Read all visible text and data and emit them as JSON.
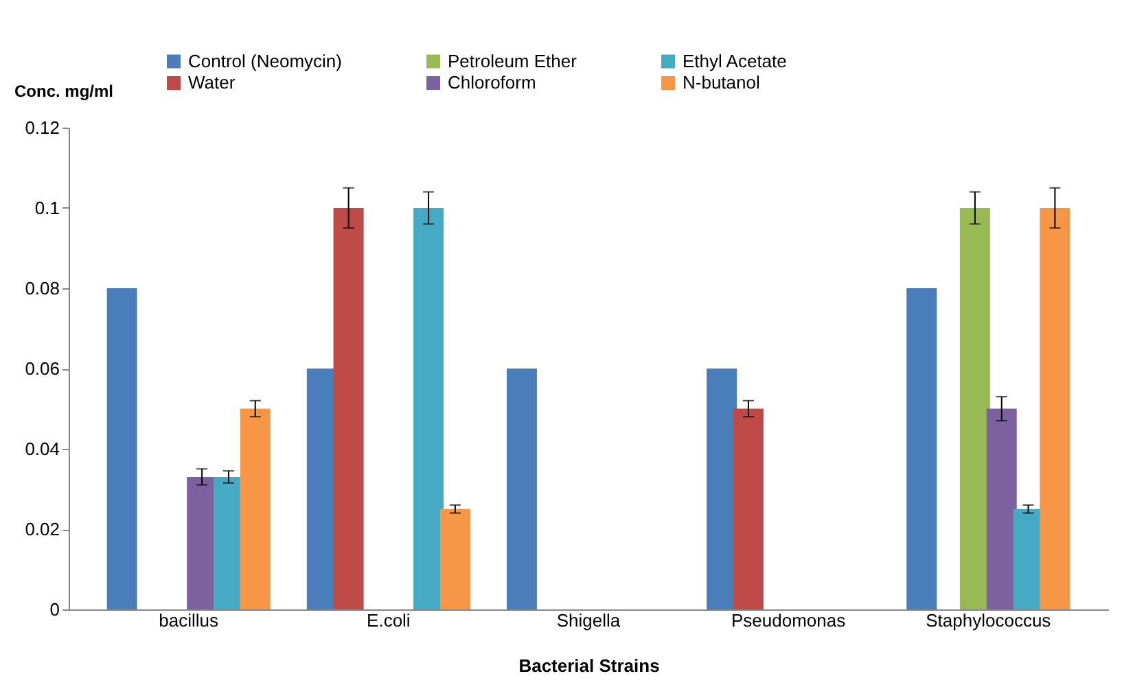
{
  "chart_data": {
    "type": "bar",
    "xlabel": "Bacterial Strains",
    "ylabel": "Conc. mg/ml",
    "categories": [
      "bacillus",
      "E.coli",
      "Shigella",
      "Pseudomonas",
      "Staphylococcus"
    ],
    "series": [
      {
        "name": "Control (Neomycin)",
        "color": "#4a7ebb",
        "values": [
          0.08,
          0.06,
          0.06,
          0.06,
          0.08
        ]
      },
      {
        "name": "Water",
        "color": "#be4b48",
        "values": [
          null,
          0.1,
          null,
          0.05,
          null
        ],
        "errors": [
          null,
          0.005,
          null,
          0.002,
          null
        ]
      },
      {
        "name": "Petroleum Ether",
        "color": "#98b954",
        "values": [
          null,
          null,
          null,
          null,
          0.1
        ],
        "errors": [
          null,
          null,
          null,
          null,
          0.004
        ]
      },
      {
        "name": "Chloroform",
        "color": "#7d60a0",
        "values": [
          0.033,
          null,
          null,
          null,
          0.05
        ],
        "errors": [
          0.002,
          null,
          null,
          null,
          0.003
        ]
      },
      {
        "name": "Ethyl Acetate",
        "color": "#46aac5",
        "values": [
          0.033,
          0.1,
          null,
          null,
          0.025
        ],
        "errors": [
          0.0015,
          0.004,
          null,
          null,
          0.001
        ]
      },
      {
        "name": "N-butanol",
        "color": "#f79646",
        "values": [
          0.05,
          0.025,
          null,
          null,
          0.1
        ],
        "errors": [
          0.002,
          0.001,
          null,
          null,
          0.005
        ]
      }
    ],
    "ylim": [
      0,
      0.12
    ],
    "yticks": [
      0,
      0.02,
      0.04,
      0.06,
      0.08,
      0.1,
      0.12
    ],
    "grid": false,
    "legend": "top"
  }
}
